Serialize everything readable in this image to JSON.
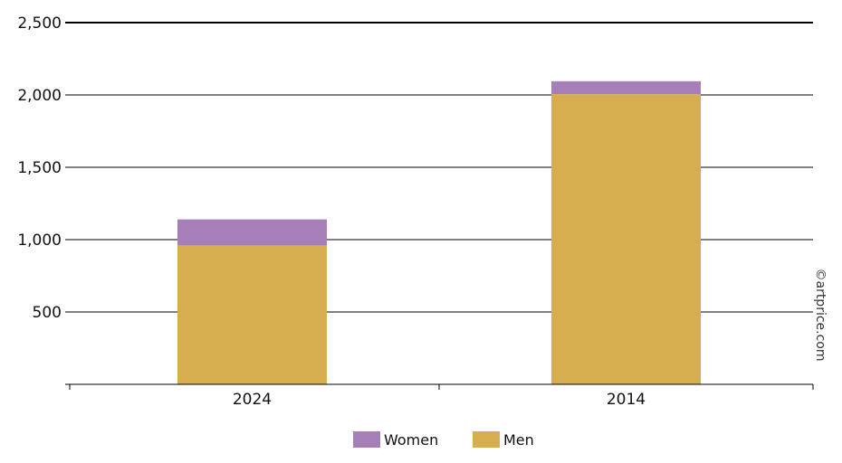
{
  "chart_data": {
    "type": "bar",
    "stacked": true,
    "categories": [
      "2024",
      "2014"
    ],
    "series": [
      {
        "name": "Men",
        "values": [
          960,
          2005
        ],
        "color": "#d6ae50"
      },
      {
        "name": "Women",
        "values": [
          180,
          90
        ],
        "color": "#a77fb8"
      }
    ],
    "y_ticks": [
      "500",
      "1,000",
      "1,500",
      "2,000",
      "2,500"
    ],
    "ylim": [
      0,
      2500
    ],
    "grid": true,
    "legend_position": "bottom",
    "legend_order": [
      "Women",
      "Men"
    ],
    "credit": "©artprice.com"
  }
}
